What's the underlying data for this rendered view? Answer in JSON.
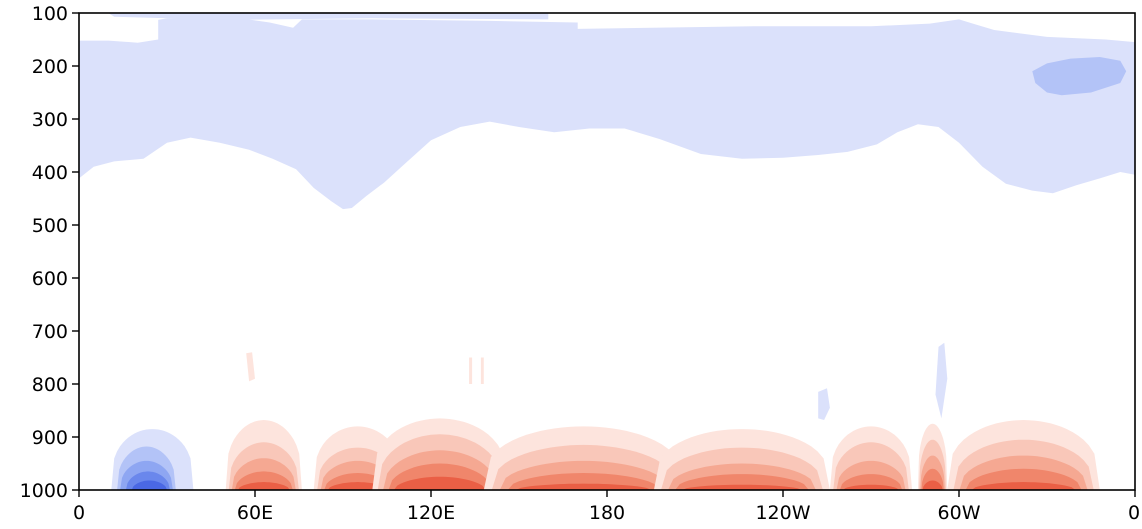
{
  "chart_data": {
    "type": "heatmap",
    "subtype": "filled-contour",
    "title": "",
    "xlabel": "",
    "ylabel": "",
    "x_ticks": [
      {
        "lon": 0,
        "label": "0"
      },
      {
        "lon": 60,
        "label": "60E"
      },
      {
        "lon": 120,
        "label": "120E"
      },
      {
        "lon": 180,
        "label": "180"
      },
      {
        "lon": 240,
        "label": "120W"
      },
      {
        "lon": 300,
        "label": "60W"
      },
      {
        "lon": 360,
        "label": "0"
      }
    ],
    "y_ticks": [
      100,
      200,
      300,
      400,
      500,
      600,
      700,
      800,
      900,
      1000
    ],
    "xlim": [
      0,
      360
    ],
    "ylim": [
      1000,
      100
    ],
    "colormap": "coolwarm (blue negative, white near zero, red positive)",
    "colors": {
      "neg1": "#dbe1fb",
      "neg2": "#b3c3f7",
      "neg3": "#8ea6f2",
      "neg4": "#6a87ec",
      "neg5": "#4a68e4",
      "pos1": "#fde4dd",
      "pos2": "#f9c7b9",
      "pos3": "#f5a892",
      "pos4": "#f0866b",
      "pos5": "#ea5f45"
    }
  }
}
